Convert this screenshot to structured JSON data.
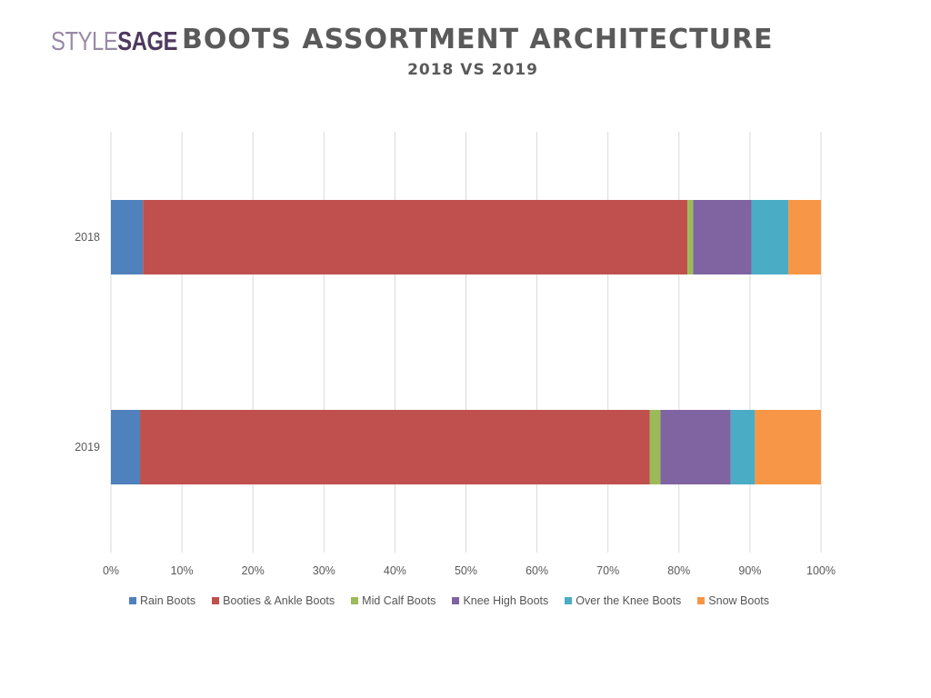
{
  "header": {
    "logo_part1": "STYLE",
    "logo_part2": "SAGE",
    "title": "BOOTS ASSORTMENT ARCHITECTURE",
    "subtitle": "2018 VS 2019"
  },
  "colors": {
    "grid": "#d9d9d9",
    "axis_text": "#595959",
    "logo_light": "#9a8aa6",
    "logo_dark": "#4e3a5e"
  },
  "chart_data": {
    "type": "bar",
    "orientation": "horizontal",
    "stacked": "100%",
    "categories": [
      "2018",
      "2019"
    ],
    "series": [
      {
        "name": "Rain Boots",
        "color": "#4f81bd",
        "values": [
          4.5,
          4.1
        ]
      },
      {
        "name": "Booties & Ankle Boots",
        "color": "#c0504d",
        "values": [
          76.7,
          71.8
        ]
      },
      {
        "name": "Mid Calf Boots",
        "color": "#9bbb59",
        "values": [
          0.8,
          1.5
        ]
      },
      {
        "name": "Knee High Boots",
        "color": "#8064a2",
        "values": [
          8.2,
          9.9
        ]
      },
      {
        "name": "Over the Knee Boots",
        "color": "#4bacc6",
        "values": [
          5.2,
          3.4
        ]
      },
      {
        "name": "Snow Boots",
        "color": "#f79646",
        "values": [
          4.6,
          9.3
        ]
      }
    ],
    "x_ticks": [
      "0%",
      "10%",
      "20%",
      "30%",
      "40%",
      "50%",
      "60%",
      "70%",
      "80%",
      "90%",
      "100%"
    ],
    "xlim": [
      0,
      100
    ],
    "grid": true,
    "legend_position": "bottom"
  }
}
